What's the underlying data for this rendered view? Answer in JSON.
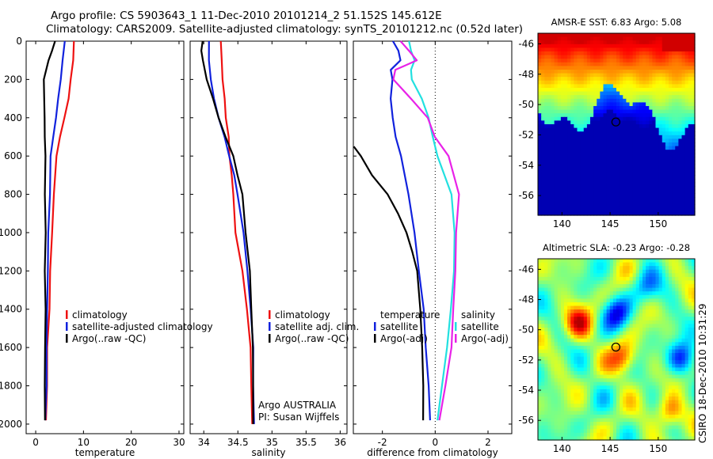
{
  "title_line1": "Argo profile: CS 5903643_1 11-Dec-2010 20101214_2 51.152S 145.612E",
  "title_line2": "Climatology: CARS2009. Satellite-adjusted climatology: synTS_20101212.nc (0.52d later)",
  "credit": "CSIRO 18-Dec-2010 10:31:29",
  "colors": {
    "climatology": "#ee1111",
    "satellite": "#1122dd",
    "argo": "#000000",
    "satellite_sal": "#22e0e0",
    "argo_sal": "#e822e8",
    "zero_line": "#000000"
  },
  "chart_data": [
    {
      "type": "line",
      "xlabel": "temperature",
      "xlim": [
        -2,
        31
      ],
      "ylim": [
        2050,
        0
      ],
      "xticks": [
        "0",
        "10",
        "20",
        "30"
      ],
      "yticks": [
        "0",
        "200",
        "400",
        "600",
        "800",
        "1000",
        "1200",
        "1400",
        "1600",
        "1800",
        "2000"
      ],
      "legend": [
        "climatology",
        "satellite-adjusted climatology",
        "Argo(..raw -QC)"
      ],
      "series": [
        {
          "name": "climatology",
          "color": "climatology",
          "depth": [
            0,
            100,
            200,
            300,
            400,
            500,
            600,
            800,
            1000,
            1200,
            1400,
            1600,
            1800,
            1980
          ],
          "values": [
            8.0,
            7.8,
            7.4,
            6.8,
            6.1,
            5.0,
            4.4,
            3.8,
            3.4,
            3.1,
            2.8,
            2.5,
            2.3,
            2.2
          ]
        },
        {
          "name": "satellite-adjusted climatology",
          "color": "satellite",
          "depth": [
            0,
            100,
            200,
            300,
            400,
            500,
            600,
            800,
            1000,
            1200,
            1400,
            1600,
            1800,
            1980
          ],
          "values": [
            6.0,
            5.7,
            5.2,
            4.7,
            4.3,
            3.6,
            3.2,
            2.9,
            2.7,
            2.5,
            2.4,
            2.3,
            2.2,
            2.1
          ]
        },
        {
          "name": "Argo(..raw -QC)",
          "color": "argo",
          "depth": [
            0,
            50,
            100,
            200,
            300,
            400,
            500,
            600,
            800,
            1000,
            1200,
            1400,
            1600,
            1800,
            1980
          ],
          "values": [
            4.0,
            3.5,
            2.6,
            1.8,
            1.7,
            1.9,
            1.9,
            2.0,
            2.0,
            2.0,
            2.0,
            2.0,
            2.0,
            1.9,
            1.9
          ]
        }
      ]
    },
    {
      "type": "line",
      "xlabel": "salinity",
      "xlim": [
        33.8,
        36.1
      ],
      "ylim": [
        2050,
        0
      ],
      "xticks": [
        "34",
        "34.5",
        "35",
        "35.5",
        "36"
      ],
      "legend": [
        "climatology",
        "satellite adj. clim.",
        "Argo(..raw -QC)"
      ],
      "annotation": [
        "Argo AUSTRALIA",
        "PI: Susan Wijffels"
      ],
      "series": [
        {
          "name": "climatology",
          "color": "climatology",
          "depth": [
            0,
            100,
            200,
            300,
            400,
            500,
            600,
            700,
            800,
            1000,
            1200,
            1400,
            1600,
            1800,
            2000
          ],
          "values": [
            34.25,
            34.26,
            34.28,
            34.3,
            34.33,
            34.36,
            34.38,
            34.41,
            34.43,
            34.47,
            34.56,
            34.64,
            34.68,
            34.7,
            34.71
          ]
        },
        {
          "name": "satellite adj. clim.",
          "color": "satellite",
          "depth": [
            0,
            100,
            200,
            300,
            400,
            500,
            600,
            700,
            800,
            1000,
            1200,
            1400,
            1600,
            1800,
            2000
          ],
          "values": [
            34.07,
            34.08,
            34.1,
            34.15,
            34.22,
            34.3,
            34.38,
            34.44,
            34.5,
            34.58,
            34.64,
            34.69,
            34.72,
            34.73,
            34.73
          ]
        },
        {
          "name": "Argo(..raw -QC)",
          "color": "argo",
          "depth": [
            0,
            50,
            100,
            200,
            300,
            400,
            500,
            600,
            700,
            800,
            1000,
            1200,
            1400,
            1600,
            1800,
            2000
          ],
          "values": [
            33.98,
            33.97,
            33.98,
            34.05,
            34.13,
            34.22,
            34.32,
            34.43,
            34.5,
            34.56,
            34.62,
            34.67,
            34.7,
            34.72,
            34.72,
            34.73
          ]
        }
      ]
    },
    {
      "type": "line",
      "xlabel": "difference from climatology",
      "xlim": [
        -3.1,
        2.9
      ],
      "ylim": [
        2050,
        0
      ],
      "xticks": [
        "-2",
        "0",
        "2"
      ],
      "legend_left": [
        "temperature",
        "satellite",
        "Argo(-adj)"
      ],
      "legend_right": [
        "salinity",
        "satellite",
        "Argo(-adj)"
      ],
      "series": [
        {
          "name": "satellite",
          "color": "satellite",
          "depth": [
            0,
            50,
            100,
            150,
            200,
            300,
            400,
            500,
            600,
            800,
            1000,
            1200,
            1400,
            1600,
            1800,
            1980
          ],
          "values": [
            -1.6,
            -1.4,
            -1.3,
            -1.7,
            -1.6,
            -1.7,
            -1.6,
            -1.5,
            -1.3,
            -1.0,
            -0.8,
            -0.6,
            -0.45,
            -0.35,
            -0.25,
            -0.2
          ]
        },
        {
          "name": "Argo(-adj)",
          "color": "argo",
          "depth": [
            550,
            600,
            700,
            800,
            900,
            1000,
            1100,
            1200,
            1400,
            1600,
            1800,
            1980
          ],
          "values": [
            -3.1,
            -2.8,
            -2.4,
            -1.8,
            -1.4,
            -1.1,
            -0.85,
            -0.7,
            -0.55,
            -0.5,
            -0.45,
            -0.45
          ]
        },
        {
          "name": "satellite",
          "color": "satellite_sal",
          "depth": [
            0,
            50,
            100,
            150,
            200,
            300,
            400,
            500,
            600,
            800,
            1000,
            1200,
            1400,
            1600,
            1800,
            1980
          ],
          "values": [
            -1.0,
            -0.9,
            -0.8,
            -0.9,
            -0.9,
            -0.5,
            -0.25,
            -0.1,
            0.1,
            0.6,
            0.75,
            0.7,
            0.6,
            0.45,
            0.25,
            0.1
          ]
        },
        {
          "name": "Argo(-adj)",
          "color": "argo_sal",
          "depth": [
            0,
            50,
            100,
            150,
            200,
            300,
            400,
            500,
            600,
            800,
            1000,
            1200,
            1400,
            1600,
            1800,
            1980
          ],
          "values": [
            -1.3,
            -1.0,
            -0.7,
            -1.5,
            -1.6,
            -0.9,
            -0.3,
            0.0,
            0.5,
            0.9,
            0.8,
            0.75,
            0.7,
            0.6,
            0.4,
            0.15
          ]
        }
      ]
    },
    {
      "type": "heatmap",
      "title": "AMSR-E SST: 6.83 Argo: 5.08",
      "xticks": [
        "140",
        "145",
        "150"
      ],
      "yticks": [
        "-46",
        "-48",
        "-50",
        "-52",
        "-54",
        "-56"
      ],
      "xlim": [
        137.5,
        153.8
      ],
      "ylim": [
        -57.3,
        -45.3
      ],
      "marker": {
        "lon": 145.6,
        "lat": -51.15
      }
    },
    {
      "type": "heatmap",
      "title": "Altimetric SLA: -0.23 Argo: -0.28",
      "xticks": [
        "140",
        "145",
        "150"
      ],
      "yticks": [
        "-46",
        "-48",
        "-50",
        "-52",
        "-54",
        "-56"
      ],
      "xlim": [
        137.5,
        153.8
      ],
      "ylim": [
        -57.3,
        -45.3
      ],
      "marker": {
        "lon": 145.6,
        "lat": -51.15
      }
    }
  ]
}
